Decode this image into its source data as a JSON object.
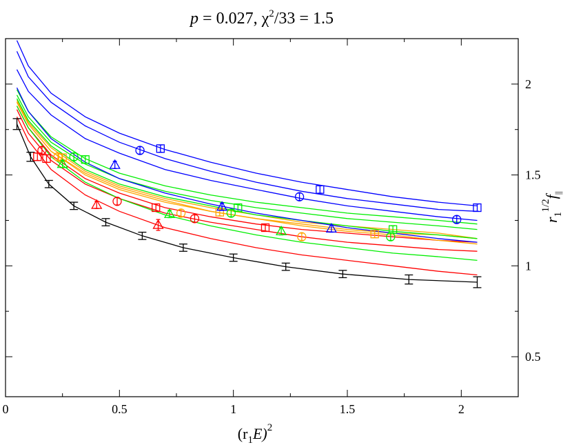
{
  "chart_data": {
    "type": "scatter",
    "title": "p = 0.027, χ²/33 = 1.5",
    "title_parts": {
      "p": "p",
      "p_value": " = 0.027, ",
      "chi": "χ",
      "chi_exp": "2",
      "chi_rest": "/33 = 1.5"
    },
    "xlabel": "(r₁E)²",
    "xlabel_parts": {
      "open": "(r",
      "sub": "1",
      "mid": "E)",
      "sup": "2"
    },
    "ylabel": "r₁^{1/2} f∥",
    "ylabel_parts": {
      "r": "r",
      "r_sub": "1",
      "exp": "1/2",
      "f": "f",
      "f_sub": "||"
    },
    "xlim": [
      0,
      2.25
    ],
    "ylim": [
      0.28,
      2.25
    ],
    "x_ticks": [
      0,
      0.5,
      1,
      1.5,
      2
    ],
    "x_tick_labels": [
      "0",
      "0.5",
      "1",
      "1.5",
      "2"
    ],
    "y_ticks": [
      0.5,
      1,
      1.5,
      2
    ],
    "y_tick_labels": [
      "0.5",
      "1",
      "1.5",
      "2"
    ],
    "colors": {
      "black": "#000000",
      "red": "#ff0000",
      "orange": "#ffa500",
      "green": "#00ee00",
      "blue": "#0000ff"
    },
    "continuum": {
      "name": "continuum",
      "color": "#000000",
      "x": [
        0.05,
        0.11,
        0.19,
        0.3,
        0.44,
        0.6,
        0.78,
        1.0,
        1.23,
        1.48,
        1.77,
        2.07
      ],
      "y": [
        1.78,
        1.6,
        1.45,
        1.33,
        1.24,
        1.165,
        1.1,
        1.045,
        0.995,
        0.955,
        0.925,
        0.91
      ],
      "err": [
        0.03,
        0.025,
        0.02,
        0.02,
        0.02,
        0.02,
        0.02,
        0.02,
        0.02,
        0.02,
        0.025,
        0.03
      ]
    },
    "curves": [
      {
        "name": "red-1",
        "color": "#ff0000",
        "x": [
          0.05,
          0.1,
          0.2,
          0.35,
          0.5,
          0.7,
          0.9,
          1.1,
          1.3,
          1.5,
          1.7,
          1.9,
          2.07
        ],
        "y": [
          1.82,
          1.69,
          1.53,
          1.39,
          1.3,
          1.21,
          1.15,
          1.1,
          1.06,
          1.03,
          1.0,
          0.97,
          0.95
        ]
      },
      {
        "name": "red-2",
        "color": "#ff0000",
        "x": [
          0.05,
          0.1,
          0.2,
          0.35,
          0.5,
          0.7,
          0.9,
          1.1,
          1.3,
          1.5,
          1.7,
          1.9,
          2.07
        ],
        "y": [
          1.86,
          1.73,
          1.58,
          1.45,
          1.37,
          1.29,
          1.24,
          1.2,
          1.16,
          1.13,
          1.11,
          1.09,
          1.08
        ]
      },
      {
        "name": "red-3",
        "color": "#ff0000",
        "x": [
          0.05,
          0.1,
          0.2,
          0.35,
          0.5,
          0.7,
          0.9,
          1.1,
          1.3,
          1.5,
          1.7,
          1.9,
          2.07
        ],
        "y": [
          1.88,
          1.76,
          1.61,
          1.48,
          1.4,
          1.32,
          1.27,
          1.23,
          1.2,
          1.18,
          1.16,
          1.14,
          1.13
        ]
      },
      {
        "name": "orange-1",
        "color": "#ffa500",
        "x": [
          0.05,
          0.1,
          0.2,
          0.35,
          0.5,
          0.7,
          0.9,
          1.1,
          1.3,
          1.5,
          1.7,
          1.9,
          2.07
        ],
        "y": [
          1.9,
          1.78,
          1.63,
          1.5,
          1.42,
          1.35,
          1.3,
          1.26,
          1.23,
          1.2,
          1.18,
          1.17,
          1.15
        ]
      },
      {
        "name": "orange-2",
        "color": "#ffa500",
        "x": [
          0.05,
          0.1,
          0.2,
          0.35,
          0.5,
          0.7,
          0.9,
          1.1,
          1.3,
          1.5,
          1.7,
          1.9,
          2.07
        ],
        "y": [
          1.91,
          1.79,
          1.65,
          1.52,
          1.44,
          1.37,
          1.32,
          1.28,
          1.24,
          1.22,
          1.2,
          1.18,
          1.15
        ]
      },
      {
        "name": "orange-3",
        "color": "#ffa500",
        "x": [
          0.05,
          0.1,
          0.2,
          0.35,
          0.5,
          0.7,
          0.9,
          1.1,
          1.3,
          1.5,
          1.7,
          1.9,
          2.07
        ],
        "y": [
          1.9,
          1.78,
          1.63,
          1.51,
          1.43,
          1.36,
          1.3,
          1.26,
          1.22,
          1.19,
          1.17,
          1.14,
          1.12
        ]
      },
      {
        "name": "green-1",
        "color": "#00ee00",
        "x": [
          0.05,
          0.1,
          0.2,
          0.35,
          0.5,
          0.7,
          0.9,
          1.1,
          1.3,
          1.5,
          1.7,
          1.9,
          2.07
        ],
        "y": [
          1.88,
          1.76,
          1.6,
          1.46,
          1.37,
          1.28,
          1.22,
          1.17,
          1.13,
          1.1,
          1.07,
          1.05,
          1.03
        ]
      },
      {
        "name": "green-2",
        "color": "#00ee00",
        "x": [
          0.05,
          0.1,
          0.2,
          0.35,
          0.5,
          0.7,
          0.9,
          1.1,
          1.3,
          1.5,
          1.7,
          1.9,
          2.07
        ],
        "y": [
          1.92,
          1.8,
          1.66,
          1.53,
          1.45,
          1.38,
          1.33,
          1.28,
          1.25,
          1.22,
          1.19,
          1.17,
          1.15
        ]
      },
      {
        "name": "green-3",
        "color": "#00ee00",
        "x": [
          0.05,
          0.1,
          0.2,
          0.35,
          0.5,
          0.7,
          0.9,
          1.1,
          1.3,
          1.5,
          1.7,
          1.9,
          2.07
        ],
        "y": [
          1.94,
          1.82,
          1.68,
          1.56,
          1.48,
          1.41,
          1.36,
          1.32,
          1.29,
          1.26,
          1.24,
          1.22,
          1.2
        ]
      },
      {
        "name": "green-4",
        "color": "#00ee00",
        "x": [
          0.05,
          0.1,
          0.2,
          0.35,
          0.5,
          0.7,
          0.9,
          1.1,
          1.3,
          1.5,
          1.7,
          1.9,
          2.07
        ],
        "y": [
          1.97,
          1.85,
          1.71,
          1.59,
          1.51,
          1.44,
          1.39,
          1.35,
          1.32,
          1.29,
          1.27,
          1.25,
          1.23
        ]
      },
      {
        "name": "blue-1",
        "color": "#0000ff",
        "x": [
          0.05,
          0.1,
          0.2,
          0.35,
          0.5,
          0.7,
          0.9,
          1.1,
          1.3,
          1.5,
          1.7,
          1.9,
          2.07
        ],
        "y": [
          1.98,
          1.85,
          1.7,
          1.57,
          1.48,
          1.4,
          1.34,
          1.29,
          1.25,
          1.21,
          1.18,
          1.15,
          1.13
        ]
      },
      {
        "name": "blue-2",
        "color": "#0000ff",
        "x": [
          0.05,
          0.1,
          0.2,
          0.35,
          0.5,
          0.7,
          0.9,
          1.1,
          1.3,
          1.5,
          1.7,
          1.9,
          2.07
        ],
        "y": [
          2.08,
          1.96,
          1.83,
          1.7,
          1.62,
          1.53,
          1.47,
          1.42,
          1.37,
          1.33,
          1.3,
          1.27,
          1.25
        ]
      },
      {
        "name": "blue-3",
        "color": "#0000ff",
        "x": [
          0.05,
          0.1,
          0.2,
          0.35,
          0.5,
          0.7,
          0.9,
          1.1,
          1.3,
          1.5,
          1.7,
          1.9,
          2.07
        ],
        "y": [
          2.18,
          2.04,
          1.9,
          1.77,
          1.68,
          1.59,
          1.52,
          1.46,
          1.41,
          1.37,
          1.34,
          1.31,
          1.3
        ]
      },
      {
        "name": "blue-4",
        "color": "#0000ff",
        "x": [
          0.05,
          0.1,
          0.2,
          0.35,
          0.5,
          0.7,
          0.9,
          1.1,
          1.3,
          1.5,
          1.7,
          1.9,
          2.07
        ],
        "y": [
          2.24,
          2.1,
          1.95,
          1.82,
          1.73,
          1.64,
          1.57,
          1.51,
          1.46,
          1.42,
          1.38,
          1.35,
          1.33
        ]
      }
    ],
    "points": [
      {
        "shape": "circle",
        "color": "#ff0000",
        "x": 0.16,
        "y": 1.635,
        "err": 0.02
      },
      {
        "shape": "square",
        "color": "#ff0000",
        "x": 0.14,
        "y": 1.6,
        "err": 0.02
      },
      {
        "shape": "square",
        "color": "#ff0000",
        "x": 0.18,
        "y": 1.59,
        "err": 0.02
      },
      {
        "shape": "triangle",
        "color": "#ff0000",
        "x": 0.4,
        "y": 1.335,
        "err": 0.02
      },
      {
        "shape": "circle",
        "color": "#ff0000",
        "x": 0.49,
        "y": 1.355,
        "err": 0.02
      },
      {
        "shape": "square",
        "color": "#ff0000",
        "x": 0.66,
        "y": 1.32,
        "err": 0.02
      },
      {
        "shape": "triangle",
        "color": "#ff0000",
        "x": 0.67,
        "y": 1.225,
        "err": 0.03
      },
      {
        "shape": "circle",
        "color": "#ff0000",
        "x": 0.83,
        "y": 1.26,
        "err": 0.02
      },
      {
        "shape": "square",
        "color": "#ff0000",
        "x": 1.14,
        "y": 1.21,
        "err": 0.02
      },
      {
        "shape": "circle",
        "color": "#ffa500",
        "x": 0.23,
        "y": 1.6,
        "err": 0.02
      },
      {
        "shape": "square",
        "color": "#ffa500",
        "x": 0.25,
        "y": 1.595,
        "err": 0.02
      },
      {
        "shape": "circle",
        "color": "#ffa500",
        "x": 0.77,
        "y": 1.29,
        "err": 0.02
      },
      {
        "shape": "square",
        "color": "#ffa500",
        "x": 0.94,
        "y": 1.295,
        "err": 0.02
      },
      {
        "shape": "circle",
        "color": "#ffa500",
        "x": 1.3,
        "y": 1.16,
        "err": 0.02
      },
      {
        "shape": "square",
        "color": "#ffa500",
        "x": 1.62,
        "y": 1.175,
        "err": 0.02
      },
      {
        "shape": "triangle",
        "color": "#00ee00",
        "x": 0.25,
        "y": 1.56,
        "err": 0.02
      },
      {
        "shape": "circle",
        "color": "#00ee00",
        "x": 0.3,
        "y": 1.6,
        "err": 0.02
      },
      {
        "shape": "square",
        "color": "#00ee00",
        "x": 0.35,
        "y": 1.585,
        "err": 0.02
      },
      {
        "shape": "triangle",
        "color": "#00ee00",
        "x": 0.72,
        "y": 1.285,
        "err": 0.02
      },
      {
        "shape": "circle",
        "color": "#00ee00",
        "x": 0.99,
        "y": 1.29,
        "err": 0.02
      },
      {
        "shape": "square",
        "color": "#00ee00",
        "x": 1.02,
        "y": 1.32,
        "err": 0.02
      },
      {
        "shape": "triangle",
        "color": "#00ee00",
        "x": 1.21,
        "y": 1.19,
        "err": 0.02
      },
      {
        "shape": "circle",
        "color": "#00ee00",
        "x": 1.69,
        "y": 1.16,
        "err": 0.02
      },
      {
        "shape": "square",
        "color": "#00ee00",
        "x": 1.7,
        "y": 1.2,
        "err": 0.02
      },
      {
        "shape": "triangle",
        "color": "#0000ff",
        "x": 0.48,
        "y": 1.555,
        "err": 0.02
      },
      {
        "shape": "circle",
        "color": "#0000ff",
        "x": 0.59,
        "y": 1.635,
        "err": 0.02
      },
      {
        "shape": "square",
        "color": "#0000ff",
        "x": 0.68,
        "y": 1.645,
        "err": 0.02
      },
      {
        "shape": "triangle",
        "color": "#0000ff",
        "x": 0.95,
        "y": 1.325,
        "err": 0.02
      },
      {
        "shape": "circle",
        "color": "#0000ff",
        "x": 1.29,
        "y": 1.38,
        "err": 0.02
      },
      {
        "shape": "square",
        "color": "#0000ff",
        "x": 1.38,
        "y": 1.42,
        "err": 0.02
      },
      {
        "shape": "triangle",
        "color": "#0000ff",
        "x": 1.43,
        "y": 1.205,
        "err": 0.02
      },
      {
        "shape": "circle",
        "color": "#0000ff",
        "x": 1.98,
        "y": 1.255,
        "err": 0.02
      },
      {
        "shape": "square",
        "color": "#0000ff",
        "x": 2.07,
        "y": 1.32,
        "err": 0.02
      }
    ]
  }
}
